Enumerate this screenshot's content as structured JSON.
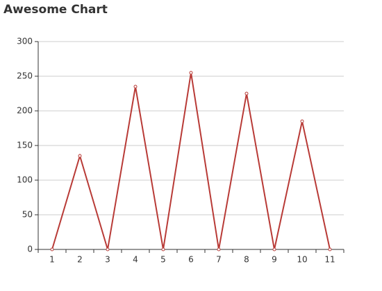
{
  "chart_data": {
    "type": "line",
    "title": "Awesome Chart",
    "categories": [
      "1",
      "2",
      "3",
      "4",
      "5",
      "6",
      "7",
      "8",
      "9",
      "10",
      "11"
    ],
    "series": [
      {
        "color": "#b83a36",
        "values": [
          0,
          135,
          0,
          235,
          0,
          255,
          0,
          225,
          0,
          185,
          0
        ]
      }
    ],
    "ylim": [
      0,
      300
    ],
    "yticks": [
      0,
      50,
      100,
      150,
      200,
      250,
      300
    ],
    "grid": true
  }
}
